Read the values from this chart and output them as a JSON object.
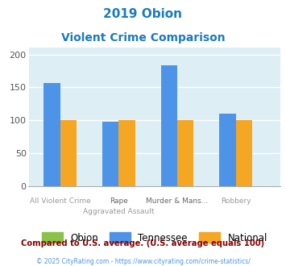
{
  "title_line1": "2019 Obion",
  "title_line2": "Violent Crime Comparison",
  "title_color": "#1a7abf",
  "cat_labels_row1": [
    "",
    "Rape",
    "Murder & Mans...",
    ""
  ],
  "cat_labels_row2": [
    "All Violent Crime",
    "Aggravated Assault",
    "",
    "Robbery"
  ],
  "obion_values": [
    0,
    0,
    0,
    0
  ],
  "tennessee_values": [
    157,
    98,
    183,
    110
  ],
  "national_values": [
    100,
    100,
    100,
    100
  ],
  "obion_color": "#8bc34a",
  "tennessee_color": "#4d94e8",
  "national_color": "#f5a623",
  "ylim": [
    0,
    210
  ],
  "yticks": [
    0,
    50,
    100,
    150,
    200
  ],
  "plot_bg_color": "#ddeef5",
  "grid_color": "#ffffff",
  "footnote1": "Compared to U.S. average. (U.S. average equals 100)",
  "footnote2": "© 2025 CityRating.com - https://www.cityrating.com/crime-statistics/",
  "footnote1_color": "#8b0000",
  "footnote2_color": "#4d94e8",
  "bar_width": 0.28,
  "legend_labels": [
    "Obion",
    "Tennessee",
    "National"
  ]
}
